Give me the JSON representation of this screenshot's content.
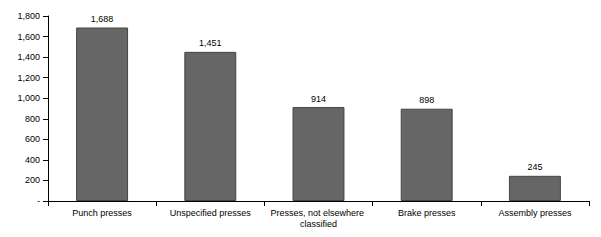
{
  "chart_data": {
    "type": "bar",
    "categories": [
      "Punch presses",
      "Unspecified presses",
      "Presses, not elsewhere classified",
      "Brake presses",
      "Assembly presses"
    ],
    "values": [
      1688,
      1451,
      914,
      898,
      245
    ],
    "value_labels": [
      "1,688",
      "1,451",
      "914",
      "898",
      "245"
    ],
    "color": "#666666",
    "ylim": [
      0,
      1800
    ],
    "yticks": [
      {
        "value": 0,
        "label": "-"
      },
      200,
      400,
      600,
      800,
      {
        "value": 1000,
        "label": "1,000"
      },
      {
        "value": 1200,
        "label": "1,200"
      },
      {
        "value": 1400,
        "label": "1,400"
      },
      {
        "value": 1600,
        "label": "1,600"
      },
      {
        "value": 1800,
        "label": "1,800"
      }
    ],
    "grid": false,
    "data_labels": true
  }
}
